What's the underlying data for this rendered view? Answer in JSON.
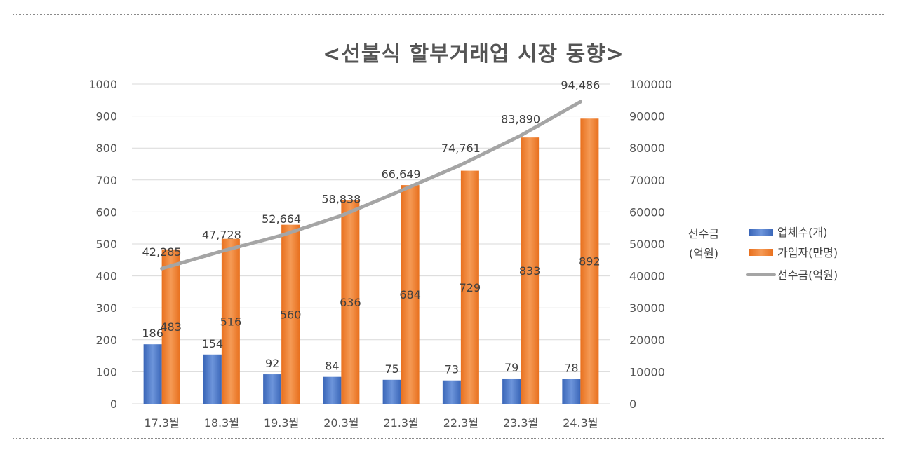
{
  "chart_data": {
    "type": "bar",
    "title": "<선불식 할부거래업 시장 동향>",
    "categories": [
      "17.3월",
      "18.3월",
      "19.3월",
      "20.3월",
      "21.3월",
      "22.3월",
      "23.3월",
      "24.3월"
    ],
    "ylim": [
      0,
      1000
    ],
    "y_ticks": [
      0,
      100,
      200,
      300,
      400,
      500,
      600,
      700,
      800,
      900,
      1000
    ],
    "y2lim": [
      0,
      100000
    ],
    "y2_ticks": [
      0,
      10000,
      20000,
      30000,
      40000,
      50000,
      60000,
      70000,
      80000,
      90000,
      100000
    ],
    "grid": true,
    "legend_position": "right",
    "legend_note": [
      "선수금",
      "(억원)"
    ],
    "series": [
      {
        "name": "업체수(개)",
        "type": "bar",
        "axis": "left",
        "color": "#4472C4",
        "values": [
          186,
          154,
          92,
          84,
          75,
          73,
          79,
          78
        ],
        "labels": [
          "186",
          "154",
          "92",
          "84",
          "75",
          "73",
          "79",
          "78"
        ]
      },
      {
        "name": "가입자(만명)",
        "type": "bar",
        "axis": "left",
        "color": "#ED7D31",
        "values": [
          483,
          516,
          560,
          636,
          684,
          729,
          833,
          892
        ],
        "labels": [
          "483",
          "516",
          "560",
          "636",
          "684",
          "729",
          "833",
          "892"
        ]
      },
      {
        "name": "선수금(억원)",
        "type": "line",
        "axis": "right",
        "color": "#A5A5A5",
        "values": [
          42285,
          47728,
          52664,
          58838,
          66649,
          74761,
          83890,
          94486
        ],
        "labels": [
          "42,285",
          "47,728",
          "52,664",
          "58,838",
          "66,649",
          "74,761",
          "83,890",
          "94,486"
        ]
      }
    ]
  }
}
